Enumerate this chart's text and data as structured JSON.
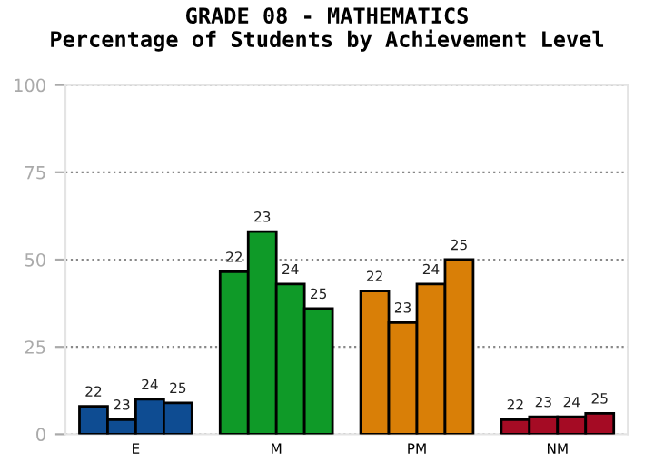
{
  "chart_data": {
    "type": "bar",
    "title": "GRADE 08 - MATHEMATICS\nPercentage of Students by Achievement Level",
    "categories": [
      "E",
      "M",
      "PM",
      "NM"
    ],
    "series": [
      {
        "name": "22",
        "colors": [
          "#0e4c92",
          "#0f9a28",
          "#d97f07",
          "#a50b24"
        ],
        "values": [
          8,
          46.5,
          41,
          4.2
        ]
      },
      {
        "name": "23",
        "colors": [
          "#0e4c92",
          "#0f9a28",
          "#d97f07",
          "#a50b24"
        ],
        "values": [
          4.2,
          58,
          32,
          5
        ]
      },
      {
        "name": "24",
        "colors": [
          "#0e4c92",
          "#0f9a28",
          "#d97f07",
          "#a50b24"
        ],
        "values": [
          10,
          43,
          43,
          5
        ]
      },
      {
        "name": "25",
        "colors": [
          "#0e4c92",
          "#0f9a28",
          "#d97f07",
          "#a50b24"
        ],
        "values": [
          9,
          36,
          50,
          6
        ]
      }
    ],
    "ylim": [
      0,
      100
    ],
    "yticks": [
      0,
      25,
      50,
      75,
      100
    ],
    "grid": "y",
    "legend": false
  }
}
